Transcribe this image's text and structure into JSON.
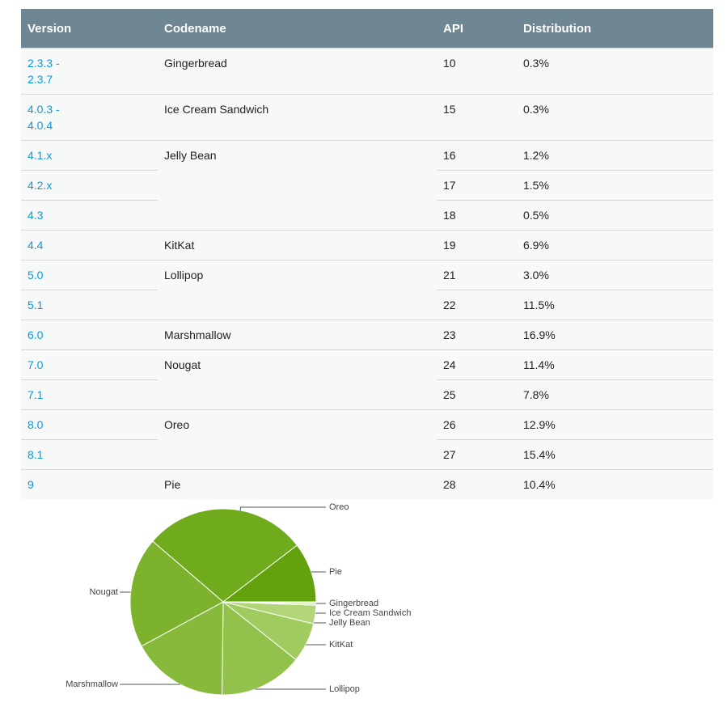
{
  "table": {
    "header": [
      "Version",
      "Codename",
      "API",
      "Distribution"
    ],
    "groups": [
      {
        "codename": "Gingerbread",
        "rows": [
          {
            "version": "2.3.3 - 2.3.7",
            "api": 10,
            "distribution": "0.3%"
          }
        ]
      },
      {
        "codename": "Ice Cream Sandwich",
        "rows": [
          {
            "version": "4.0.3 - 4.0.4",
            "api": 15,
            "distribution": "0.3%"
          }
        ]
      },
      {
        "codename": "Jelly Bean",
        "rows": [
          {
            "version": "4.1.x",
            "api": 16,
            "distribution": "1.2%"
          },
          {
            "version": "4.2.x",
            "api": 17,
            "distribution": "1.5%"
          },
          {
            "version": "4.3",
            "api": 18,
            "distribution": "0.5%"
          }
        ]
      },
      {
        "codename": "KitKat",
        "rows": [
          {
            "version": "4.4",
            "api": 19,
            "distribution": "6.9%"
          }
        ]
      },
      {
        "codename": "Lollipop",
        "rows": [
          {
            "version": "5.0",
            "api": 21,
            "distribution": "3.0%"
          },
          {
            "version": "5.1",
            "api": 22,
            "distribution": "11.5%"
          }
        ]
      },
      {
        "codename": "Marshmallow",
        "rows": [
          {
            "version": "6.0",
            "api": 23,
            "distribution": "16.9%"
          }
        ]
      },
      {
        "codename": "Nougat",
        "rows": [
          {
            "version": "7.0",
            "api": 24,
            "distribution": "11.4%"
          },
          {
            "version": "7.1",
            "api": 25,
            "distribution": "7.8%"
          }
        ]
      },
      {
        "codename": "Oreo",
        "rows": [
          {
            "version": "8.0",
            "api": 26,
            "distribution": "12.9%"
          },
          {
            "version": "8.1",
            "api": 27,
            "distribution": "15.4%"
          }
        ]
      },
      {
        "codename": "Pie",
        "rows": [
          {
            "version": "9",
            "api": 28,
            "distribution": "10.4%"
          }
        ]
      }
    ]
  },
  "chart_data": {
    "type": "pie",
    "categories": [
      "Gingerbread",
      "Ice Cream Sandwich",
      "Jelly Bean",
      "KitKat",
      "Lollipop",
      "Marshmallow",
      "Nougat",
      "Oreo",
      "Pie"
    ],
    "values": [
      0.3,
      0.3,
      3.2,
      6.9,
      14.5,
      16.9,
      19.2,
      28.3,
      10.4
    ],
    "colors": [
      "#d3e9a8",
      "#c6e18f",
      "#b2d577",
      "#a0cb5f",
      "#92c24b",
      "#87ba3b",
      "#7cb22c",
      "#6fab1d",
      "#63a20d"
    ]
  }
}
